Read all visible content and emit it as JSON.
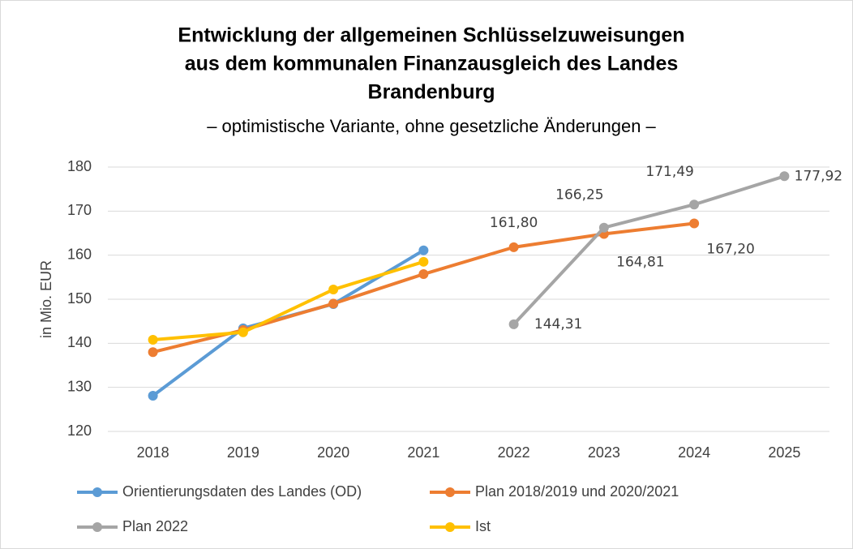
{
  "chart_data": {
    "type": "line",
    "title": [
      "Entwicklung der allgemeinen Schlüsselzuweisungen",
      "aus dem kommunalen Finanzausgleich des Landes",
      "Brandenburg"
    ],
    "subtitle": "– optimistische Variante, ohne gesetzliche Änderungen –",
    "y_label": "in Mio. EUR",
    "categories": [
      "2018",
      "2019",
      "2020",
      "2021",
      "2022",
      "2023",
      "2024",
      "2025"
    ],
    "ylim": [
      120,
      180
    ],
    "yticks": [
      120,
      130,
      140,
      150,
      160,
      170,
      180
    ],
    "grid": true,
    "series": [
      {
        "name": "Orientierungsdaten des Landes (OD)",
        "color": "#5b9bd5",
        "values": [
          128.1,
          143.4,
          148.9,
          161.1,
          null,
          null,
          null,
          null
        ]
      },
      {
        "name": "Plan 2018/2019 und 2020/2021",
        "color": "#ed7d31",
        "values": [
          138.0,
          143.0,
          149.0,
          155.7,
          161.8,
          164.81,
          167.2,
          null
        ],
        "value_labels": [
          null,
          null,
          null,
          null,
          "161,80",
          "164,81",
          "167,20",
          null
        ]
      },
      {
        "name": "Plan 2022",
        "color": "#a5a5a5",
        "values": [
          null,
          null,
          null,
          null,
          144.31,
          166.25,
          171.49,
          177.92
        ],
        "value_labels": [
          null,
          null,
          null,
          null,
          "144,31",
          "166,25",
          "171,49",
          "177,92"
        ]
      },
      {
        "name": "Ist",
        "color": "#ffc000",
        "values": [
          140.8,
          142.5,
          152.2,
          158.5,
          null,
          null,
          null,
          null
        ]
      }
    ]
  }
}
